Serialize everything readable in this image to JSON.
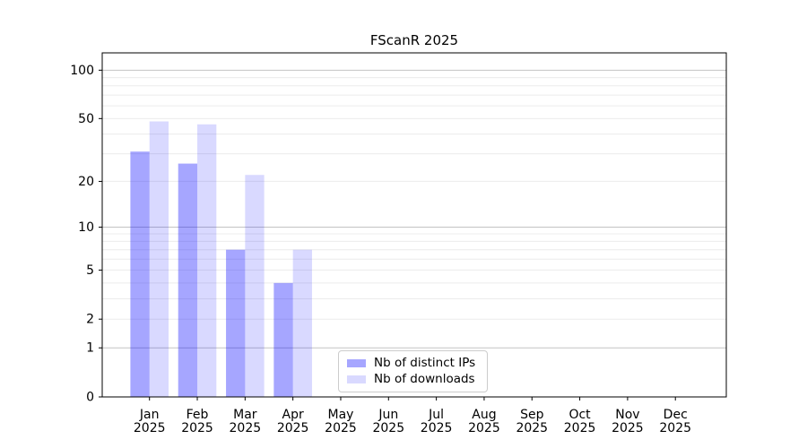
{
  "figure": {
    "background": "#ffffff"
  },
  "chart_data": {
    "type": "bar",
    "title": "FScanR 2025",
    "categories": [
      "Jan",
      "Feb",
      "Mar",
      "Apr",
      "May",
      "Jun",
      "Jul",
      "Aug",
      "Sep",
      "Oct",
      "Nov",
      "Dec"
    ],
    "category_year": "2025",
    "series": [
      {
        "name": "Nb of distinct IPs",
        "color": "rgba(0,0,255,0.35)",
        "values": [
          31,
          26,
          7,
          4,
          0,
          0,
          0,
          0,
          0,
          0,
          0,
          0
        ]
      },
      {
        "name": "Nb of downloads",
        "color": "rgba(0,0,255,0.15)",
        "values": [
          48,
          46,
          22,
          7,
          0,
          0,
          0,
          0,
          0,
          0,
          0,
          0
        ]
      }
    ],
    "xlabel": "",
    "ylabel": "",
    "yscale": "log1p",
    "ylim": [
      0,
      128
    ],
    "yticks": [
      0,
      1,
      2,
      5,
      10,
      20,
      50,
      100
    ],
    "grid": {
      "major_yticks": [
        1,
        10,
        100
      ],
      "minor_yticks": [
        2,
        3,
        4,
        5,
        6,
        7,
        8,
        9,
        20,
        30,
        40,
        50,
        60,
        70,
        80,
        90
      ],
      "major_color": "#c3c3c3",
      "minor_color": "#ececec"
    },
    "legend_position": "lower center inside axes",
    "axis_color": "#000000",
    "text_color": "#000000"
  }
}
